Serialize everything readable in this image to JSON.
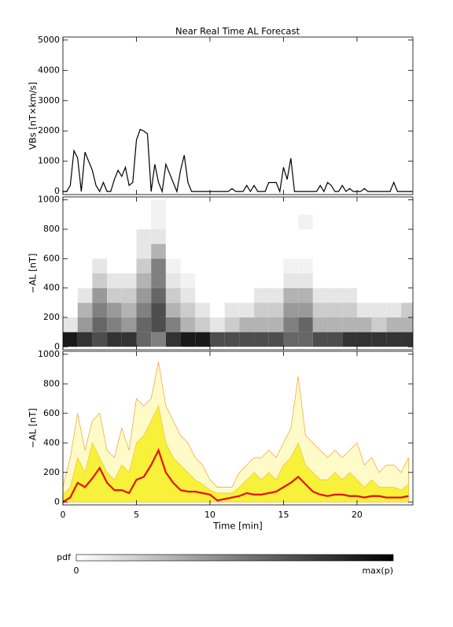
{
  "chart_data": [
    {
      "type": "line",
      "title": "Near Real Time AL Forecast",
      "ylabel": "VBs [nT×km/s]",
      "color": "#000000",
      "xlim": [
        0,
        23.8
      ],
      "xticks": [
        0,
        5,
        10,
        15,
        20
      ],
      "ylim": [
        -100,
        5100
      ],
      "yticks": [
        0,
        1000,
        2000,
        3000,
        4000,
        5000
      ],
      "x": [
        0,
        0.25,
        0.5,
        0.75,
        1,
        1.25,
        1.5,
        1.75,
        2,
        2.25,
        2.5,
        2.75,
        3,
        3.25,
        3.5,
        3.75,
        4,
        4.25,
        4.5,
        4.75,
        5,
        5.25,
        5.5,
        5.75,
        6,
        6.25,
        6.5,
        6.75,
        7,
        7.25,
        7.5,
        7.75,
        8,
        8.25,
        8.5,
        8.75,
        9,
        9.25,
        9.5,
        9.75,
        10,
        10.25,
        10.5,
        10.75,
        11,
        11.25,
        11.5,
        11.75,
        12,
        12.25,
        12.5,
        12.75,
        13,
        13.25,
        13.5,
        13.75,
        14,
        14.25,
        14.5,
        14.75,
        15,
        15.25,
        15.5,
        15.75,
        16,
        16.25,
        16.5,
        16.75,
        17,
        17.25,
        17.5,
        17.75,
        18,
        18.25,
        18.5,
        18.75,
        19,
        19.25,
        19.5,
        19.75,
        20,
        20.25,
        20.5,
        20.75,
        21,
        21.25,
        21.5,
        21.75,
        22,
        22.25,
        22.5,
        22.75,
        23,
        23.25,
        23.5,
        23.75
      ],
      "values": [
        0,
        0,
        200,
        1350,
        1100,
        0,
        1300,
        1000,
        700,
        200,
        0,
        300,
        0,
        0,
        400,
        700,
        500,
        800,
        200,
        300,
        1700,
        2050,
        2000,
        1900,
        0,
        900,
        300,
        0,
        900,
        600,
        300,
        0,
        700,
        1200,
        300,
        0,
        0,
        0,
        0,
        0,
        0,
        0,
        0,
        0,
        0,
        0,
        100,
        0,
        0,
        0,
        200,
        0,
        200,
        0,
        0,
        0,
        300,
        300,
        300,
        0,
        800,
        400,
        1100,
        0,
        0,
        0,
        0,
        0,
        0,
        0,
        200,
        0,
        300,
        200,
        0,
        0,
        200,
        0,
        100,
        0,
        0,
        0,
        100,
        0,
        0,
        0,
        0,
        0,
        0,
        0,
        300,
        0,
        0,
        0,
        0,
        0
      ]
    },
    {
      "type": "heatmap",
      "ylabel": "−AL [nT]",
      "xlim": [
        0,
        23.8
      ],
      "xticks": [
        0,
        5,
        10,
        15,
        20
      ],
      "ylim": [
        -20,
        1020
      ],
      "yticks": [
        0,
        200,
        400,
        600,
        800,
        1000
      ],
      "xbins": [
        0,
        1,
        2,
        3,
        4,
        5,
        6,
        7,
        8,
        9,
        10,
        11,
        12,
        13,
        14,
        15,
        16,
        17,
        18,
        19,
        20,
        21,
        22,
        23,
        24
      ],
      "ybins": [
        0,
        100,
        200,
        300,
        400,
        500,
        600,
        700,
        800,
        900,
        1000
      ],
      "z": [
        [
          0.9,
          0.1,
          0,
          0,
          0,
          0,
          0,
          0,
          0,
          0
        ],
        [
          0.8,
          0.4,
          0.3,
          0.1,
          0,
          0,
          0,
          0,
          0,
          0
        ],
        [
          0.7,
          0.6,
          0.5,
          0.4,
          0.2,
          0.1,
          0,
          0,
          0,
          0
        ],
        [
          0.8,
          0.5,
          0.4,
          0.2,
          0.1,
          0,
          0,
          0,
          0,
          0
        ],
        [
          0.8,
          0.4,
          0.3,
          0.2,
          0.1,
          0,
          0,
          0,
          0,
          0
        ],
        [
          0.6,
          0.6,
          0.5,
          0.4,
          0.3,
          0.2,
          0.1,
          0.1,
          0,
          0
        ],
        [
          0.5,
          0.7,
          0.7,
          0.6,
          0.5,
          0.5,
          0.3,
          0.1,
          0.05,
          0.05
        ],
        [
          0.8,
          0.5,
          0.3,
          0.2,
          0.1,
          0.05,
          0,
          0,
          0,
          0
        ],
        [
          0.9,
          0.3,
          0.2,
          0.1,
          0.05,
          0,
          0,
          0,
          0,
          0
        ],
        [
          0.9,
          0.2,
          0.1,
          0,
          0,
          0,
          0,
          0,
          0,
          0
        ],
        [
          0.7,
          0.1,
          0,
          0,
          0,
          0,
          0,
          0,
          0,
          0
        ],
        [
          0.7,
          0.2,
          0.1,
          0,
          0,
          0,
          0,
          0,
          0,
          0
        ],
        [
          0.7,
          0.3,
          0.1,
          0,
          0,
          0,
          0,
          0,
          0,
          0
        ],
        [
          0.7,
          0.3,
          0.2,
          0.1,
          0,
          0,
          0,
          0,
          0,
          0
        ],
        [
          0.7,
          0.3,
          0.2,
          0.1,
          0,
          0,
          0,
          0,
          0,
          0
        ],
        [
          0.6,
          0.5,
          0.4,
          0.3,
          0.1,
          0.05,
          0,
          0,
          0,
          0
        ],
        [
          0.6,
          0.6,
          0.4,
          0.3,
          0.1,
          0.05,
          0,
          0,
          0.05,
          0
        ],
        [
          0.7,
          0.3,
          0.2,
          0.1,
          0,
          0,
          0,
          0,
          0,
          0
        ],
        [
          0.7,
          0.3,
          0.2,
          0.1,
          0,
          0,
          0,
          0,
          0,
          0
        ],
        [
          0.8,
          0.3,
          0.2,
          0.1,
          0,
          0,
          0,
          0,
          0,
          0
        ],
        [
          0.8,
          0.3,
          0.1,
          0,
          0,
          0,
          0,
          0,
          0,
          0
        ],
        [
          0.8,
          0.2,
          0.1,
          0,
          0,
          0,
          0,
          0,
          0,
          0
        ],
        [
          0.8,
          0.3,
          0.1,
          0,
          0,
          0,
          0,
          0,
          0,
          0
        ],
        [
          0.8,
          0.3,
          0.2,
          0,
          0,
          0,
          0,
          0,
          0,
          0
        ]
      ],
      "colorbar": {
        "label": "pdf",
        "min_label": "0",
        "max_label": "max(p)"
      }
    },
    {
      "type": "band",
      "ylabel": "−AL [nT]",
      "xlabel": "Time [min]",
      "show_xtick_labels": true,
      "xlim": [
        0,
        23.8
      ],
      "xticks": [
        0,
        5,
        10,
        15,
        20
      ],
      "ylim": [
        -20,
        1020
      ],
      "yticks": [
        0,
        200,
        400,
        600,
        800,
        1000
      ],
      "x": [
        0,
        0.5,
        1,
        1.5,
        2,
        2.5,
        3,
        3.5,
        4,
        4.5,
        5,
        5.5,
        6,
        6.5,
        7,
        7.5,
        8,
        8.5,
        9,
        9.5,
        10,
        10.5,
        11,
        11.5,
        12,
        12.5,
        13,
        13.5,
        14,
        14.5,
        15,
        15.5,
        16,
        16.5,
        17,
        17.5,
        18,
        18.5,
        19,
        19.5,
        20,
        20.5,
        21,
        21.5,
        22,
        22.5,
        23,
        23.5
      ],
      "series": [
        {
          "style": "area",
          "color": "#fffbc8",
          "stroke": "#f0a030",
          "values": [
            100,
            300,
            600,
            350,
            550,
            600,
            350,
            300,
            500,
            350,
            700,
            650,
            700,
            950,
            650,
            550,
            450,
            400,
            300,
            250,
            150,
            100,
            100,
            100,
            200,
            250,
            300,
            300,
            350,
            300,
            400,
            500,
            850,
            450,
            400,
            350,
            300,
            350,
            300,
            350,
            400,
            250,
            300,
            200,
            250,
            250,
            200,
            300
          ]
        },
        {
          "style": "area",
          "color": "#f7f13a",
          "stroke": "#f0c040",
          "values": [
            50,
            100,
            300,
            200,
            400,
            300,
            200,
            150,
            250,
            200,
            400,
            450,
            550,
            650,
            400,
            300,
            250,
            200,
            150,
            120,
            80,
            60,
            60,
            60,
            100,
            150,
            200,
            150,
            200,
            150,
            250,
            300,
            400,
            250,
            200,
            150,
            150,
            200,
            150,
            200,
            150,
            100,
            150,
            100,
            100,
            100,
            80,
            120
          ]
        },
        {
          "style": "line",
          "color": "#e8100e",
          "values": [
            0,
            30,
            130,
            100,
            160,
            230,
            130,
            80,
            80,
            60,
            150,
            170,
            250,
            350,
            200,
            130,
            80,
            70,
            70,
            60,
            50,
            10,
            20,
            30,
            40,
            60,
            50,
            50,
            60,
            70,
            100,
            130,
            170,
            120,
            70,
            50,
            40,
            50,
            50,
            40,
            40,
            30,
            40,
            40,
            30,
            30,
            30,
            40
          ]
        }
      ]
    }
  ]
}
